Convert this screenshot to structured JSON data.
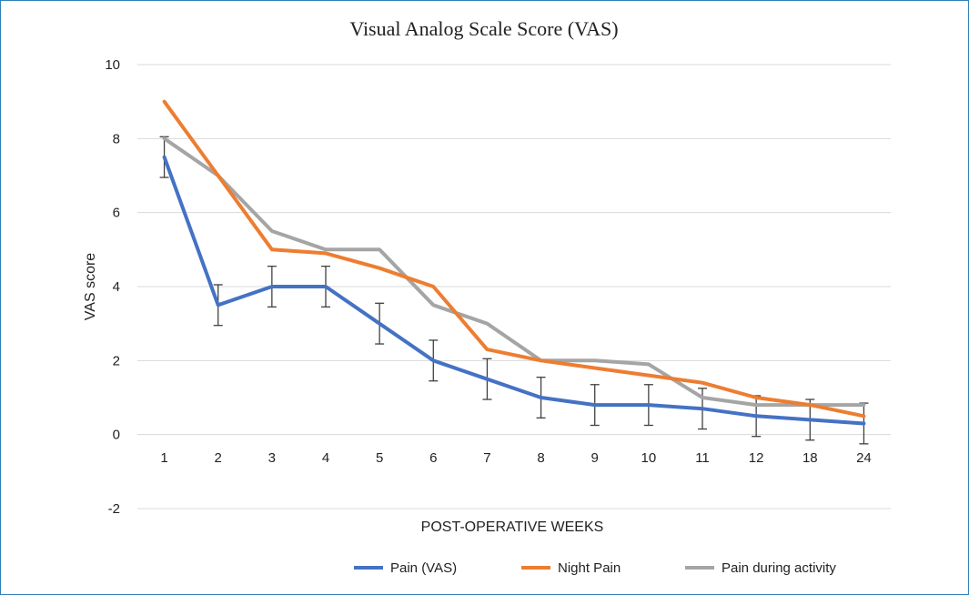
{
  "chart_data": {
    "type": "line",
    "title": "Visual Analog Scale Score (VAS)",
    "xlabel": "POST-OPERATIVE WEEKS",
    "ylabel": "VAS score",
    "categories": [
      "1",
      "2",
      "3",
      "4",
      "5",
      "6",
      "7",
      "8",
      "9",
      "10",
      "11",
      "12",
      "18",
      "24"
    ],
    "ylim": [
      -2,
      10
    ],
    "yticks": [
      "-2",
      "0",
      "2",
      "4",
      "6",
      "8",
      "10"
    ],
    "ytick_values": [
      -2,
      0,
      2,
      4,
      6,
      8,
      10
    ],
    "grid": true,
    "legend_position": "bottom-right",
    "series": [
      {
        "name": "Pain (VAS)",
        "color": "#4472c4",
        "values": [
          7.5,
          3.5,
          4.0,
          4.0,
          3.0,
          2.0,
          1.5,
          1.0,
          0.8,
          0.8,
          0.7,
          0.5,
          0.4,
          0.3
        ],
        "error": [
          0.55,
          0.55,
          0.55,
          0.55,
          0.55,
          0.55,
          0.55,
          0.55,
          0.55,
          0.55,
          0.55,
          0.55,
          0.55,
          0.55
        ]
      },
      {
        "name": "Night Pain",
        "color": "#ed7d31",
        "values": [
          9.0,
          7.0,
          5.0,
          4.9,
          4.5,
          4.0,
          2.3,
          2.0,
          1.8,
          1.6,
          1.4,
          1.0,
          0.8,
          0.5
        ]
      },
      {
        "name": "Pain during activity",
        "color": "#a5a5a5",
        "values": [
          8.0,
          7.0,
          5.5,
          5.0,
          5.0,
          3.5,
          3.0,
          2.0,
          2.0,
          1.9,
          1.0,
          0.8,
          0.8,
          0.8
        ]
      }
    ]
  },
  "frame_color": "#2f7fb8",
  "grid_color": "#d9d9d9",
  "errorbar_color": "#404040"
}
